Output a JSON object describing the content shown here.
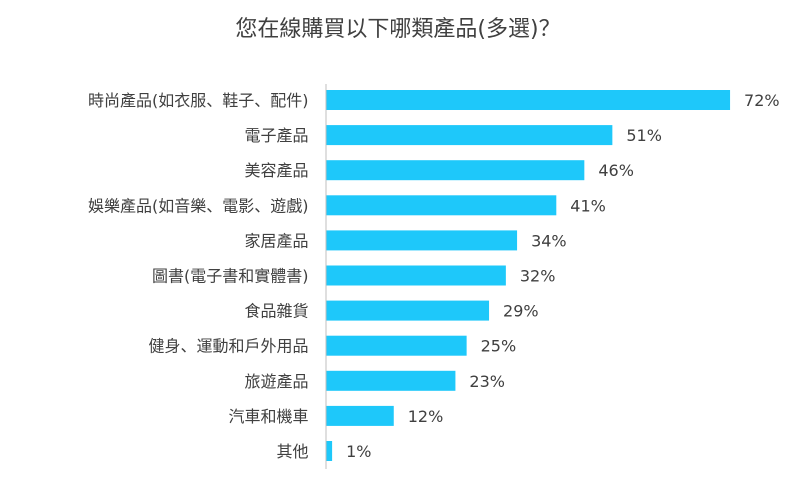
{
  "chart_data": {
    "type": "bar",
    "orientation": "horizontal",
    "title": "您在線購買以下哪類產品(多選)？",
    "categories": [
      "時尚產品(如衣服、鞋子、配件)",
      "電子產品",
      "美容產品",
      "娛樂產品(如音樂、電影、遊戲)",
      "家居產品",
      "圖書(電子書和實體書)",
      "食品雜貨",
      "健身、運動和戶外用品",
      "旅遊產品",
      "汽車和機車",
      "其他"
    ],
    "values": [
      72,
      51,
      46,
      41,
      34,
      32,
      29,
      25,
      23,
      12,
      1
    ],
    "value_suffix": "%",
    "xlim": [
      0,
      100
    ],
    "bar_color": "#1EC8FA",
    "axis_color": "#BFBFBF",
    "text_color": "#404040",
    "grid": false,
    "legend": "none"
  }
}
